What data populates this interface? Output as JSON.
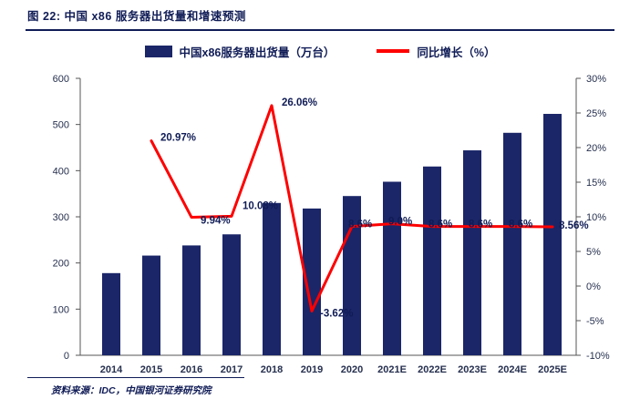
{
  "figure": {
    "title": "图 22: 中国 x86 服务器出货量和增速预测",
    "source": "资料来源：IDC，中国银河证券研究院"
  },
  "legend": {
    "bar_label": "中国x86服务器出货量（万台）",
    "line_label": "同比增长（%）"
  },
  "colors": {
    "bar": "#1b2668",
    "line": "#fe0000",
    "axis": "#555555",
    "tick_text": "#26304f",
    "label_text": "#101c56"
  },
  "chart_data": {
    "type": "bar",
    "categories": [
      "2014",
      "2015",
      "2016",
      "2017",
      "2018",
      "2019",
      "2020",
      "2021E",
      "2022E",
      "2023E",
      "2024E",
      "2025E"
    ],
    "series": [
      {
        "name": "中国x86服务器出货量（万台）",
        "type": "bar",
        "axis": "left",
        "values": [
          178,
          216,
          238,
          262,
          330,
          318,
          345,
          376,
          409,
          444,
          482,
          523
        ]
      },
      {
        "name": "同比增长（%）",
        "type": "line",
        "axis": "right",
        "values": [
          null,
          20.97,
          9.94,
          10.08,
          26.06,
          -3.62,
          8.6,
          9.0,
          8.6,
          8.6,
          8.6,
          8.56
        ],
        "labels": [
          null,
          "20.97%",
          "9.94%",
          "10.08%",
          "26.06%",
          "-3.62%",
          "8.6%",
          "9.0%",
          "8.6%",
          "8.6%",
          "8.6%",
          "8.56%"
        ]
      }
    ],
    "left_axis": {
      "min": 0,
      "max": 600,
      "step": 100,
      "ticks": [
        "0",
        "100",
        "200",
        "300",
        "400",
        "500",
        "600"
      ]
    },
    "right_axis": {
      "min": -10,
      "max": 30,
      "step": 5,
      "ticks": [
        "-10%",
        "-5%",
        "0%",
        "5%",
        "10%",
        "15%",
        "20%",
        "25%",
        "30%"
      ]
    },
    "grid": false,
    "legend_position": "top"
  }
}
